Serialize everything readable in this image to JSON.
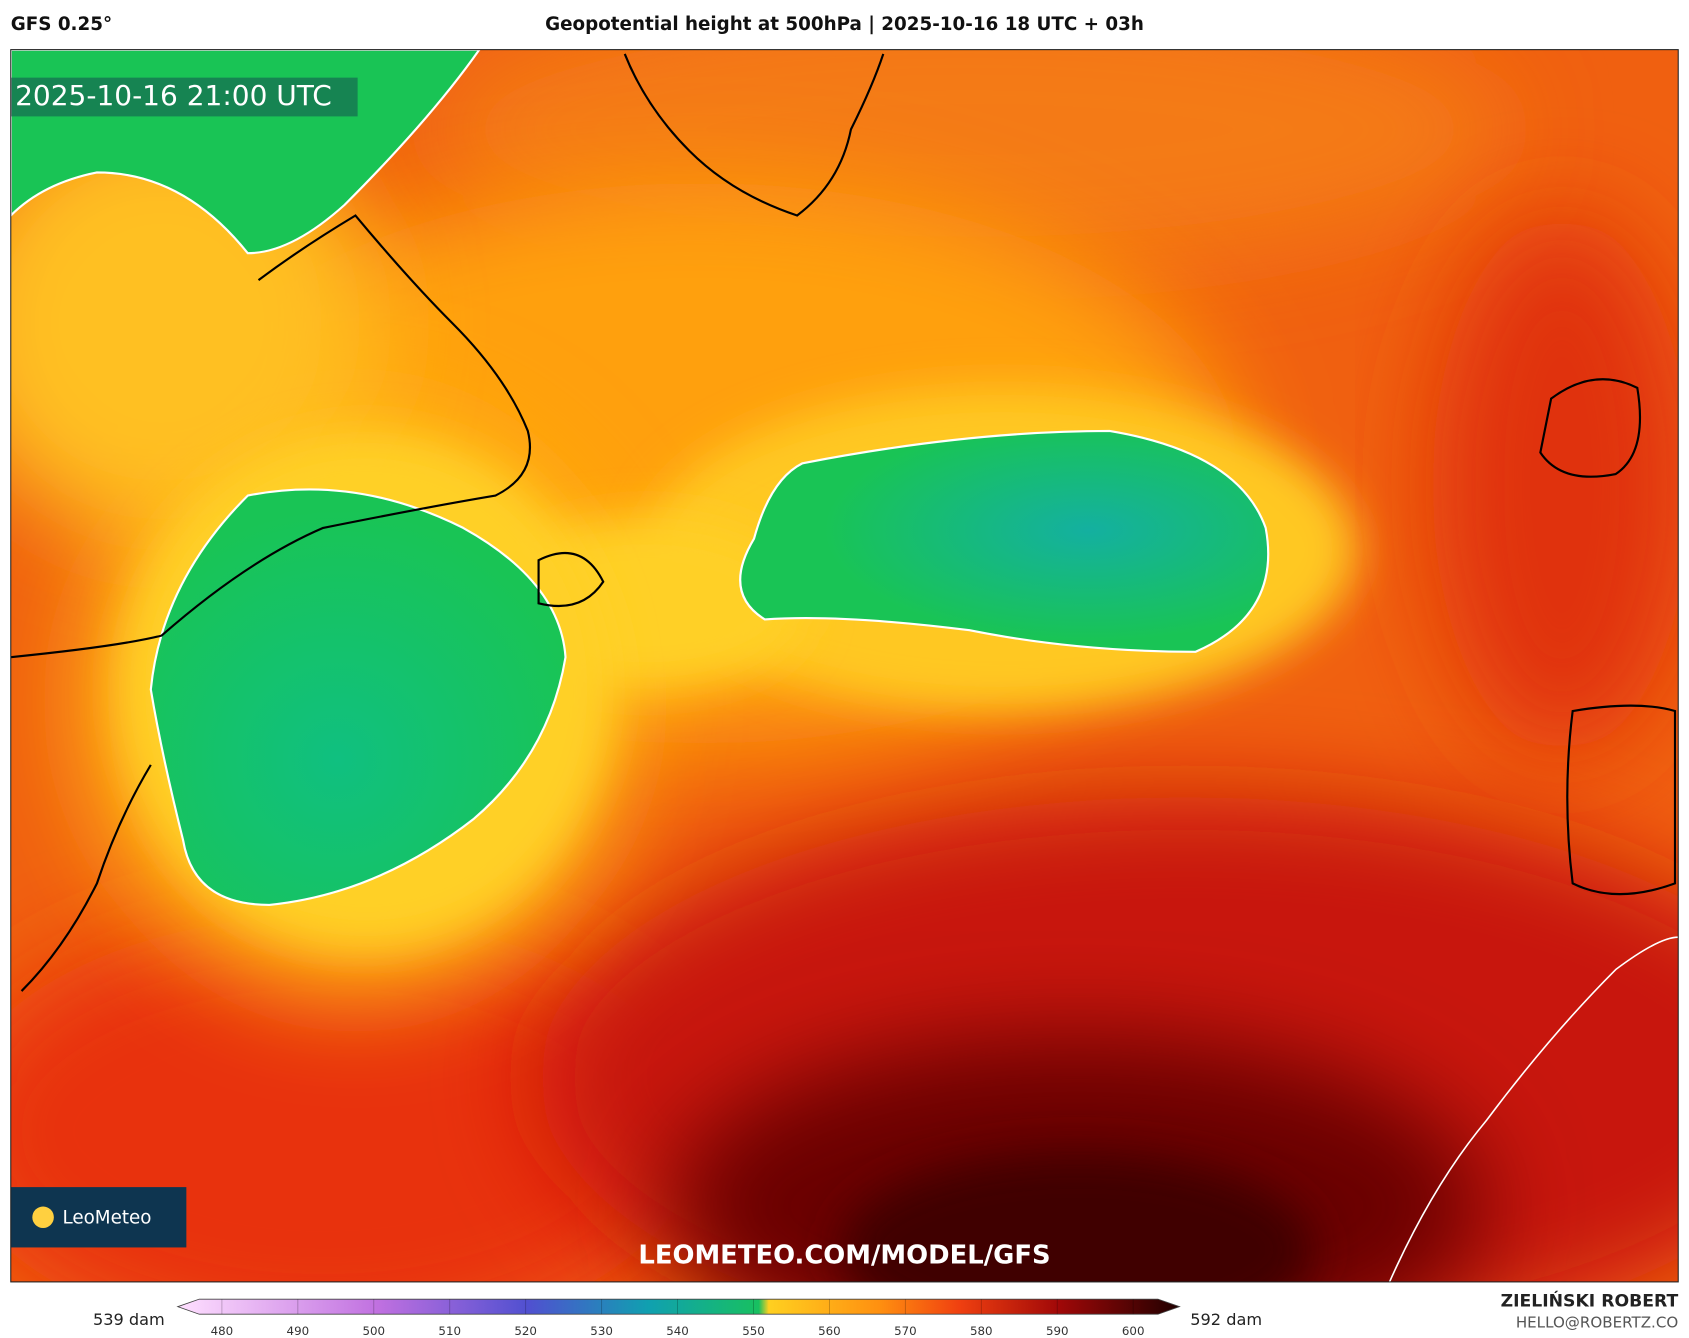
{
  "header": {
    "model": "GFS 0.25°",
    "title": "Geopotential height at 500hPa | 2025-10-16 18 UTC + 03h"
  },
  "map": {
    "valid_time": "2025-10-16 21:00 UTC",
    "logo": "LeoMeteo",
    "watermark": "LEOMETEO.COM/MODEL/GFS"
  },
  "colorbar": {
    "min_label": "539 dam",
    "max_label": "592 dam",
    "ticks": [
      480,
      490,
      500,
      510,
      520,
      530,
      540,
      550,
      560,
      570,
      580,
      590,
      600
    ]
  },
  "footer": {
    "author": "ZIELIŃSKI ROBERT",
    "contact": "HELLO@ROBERTZ.CO"
  }
}
